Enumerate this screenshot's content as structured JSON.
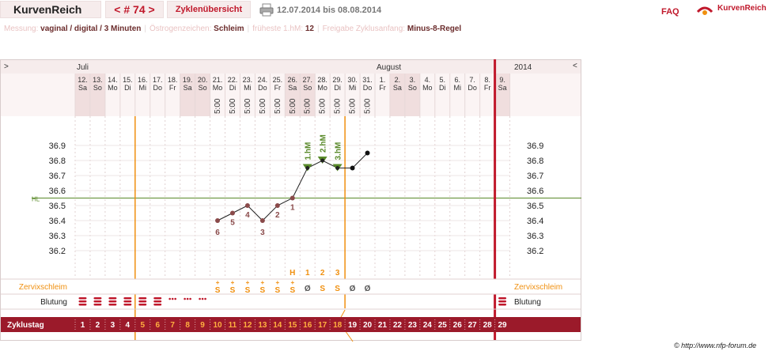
{
  "header": {
    "app_title": "KurvenReich",
    "cycle_nav": "< # 74 >",
    "cycle_overview": "Zyklenübersicht",
    "date_range": "12.07.2014 bis 08.08.2014",
    "faq": "FAQ",
    "brand": "KurvenReich"
  },
  "info": [
    {
      "label": "Messung:",
      "value": "vaginal / digital / 3 Minuten"
    },
    {
      "label": "Östrogenzeichen:",
      "value": "Schleim"
    },
    {
      "label": "früheste 1.hM:",
      "value": "12"
    },
    {
      "label": "Freigabe Zyklusanfang:",
      "value": "Minus-8-Regel"
    }
  ],
  "chart": {
    "left_arrow": ">",
    "right_arrow": "<",
    "year": "2014",
    "hl_label": "HL",
    "months": [
      {
        "label": "Juli",
        "col": 0
      },
      {
        "label": "August",
        "col": 20
      }
    ],
    "days": [
      {
        "d": "12.",
        "w": "Sa",
        "cd": "1",
        "t": null,
        "m": "",
        "b": "heavy",
        "we": true
      },
      {
        "d": "13.",
        "w": "So",
        "cd": "2",
        "t": null,
        "m": "",
        "b": "heavy",
        "we": true
      },
      {
        "d": "14.",
        "w": "Mo",
        "cd": "3",
        "t": null,
        "m": "",
        "b": "heavy",
        "we": false
      },
      {
        "d": "15.",
        "w": "Di",
        "cd": "4",
        "t": null,
        "m": "",
        "b": "heavy",
        "we": false
      },
      {
        "d": "16.",
        "w": "Mi",
        "cd": "5",
        "t": null,
        "m": "",
        "b": "heavy",
        "we": false
      },
      {
        "d": "17.",
        "w": "Do",
        "cd": "6",
        "t": null,
        "m": "",
        "b": "heavy",
        "we": false
      },
      {
        "d": "18.",
        "w": "Fr",
        "cd": "7",
        "t": null,
        "m": "",
        "b": "spot",
        "we": false
      },
      {
        "d": "19.",
        "w": "Sa",
        "cd": "8",
        "t": null,
        "m": "",
        "b": "spot",
        "we": true
      },
      {
        "d": "20.",
        "w": "So",
        "cd": "9",
        "t": null,
        "m": "",
        "b": "spot",
        "we": true
      },
      {
        "d": "21.",
        "w": "Mo",
        "cd": "10",
        "t": "5:00",
        "m": "S+",
        "b": "",
        "we": false
      },
      {
        "d": "22.",
        "w": "Di",
        "cd": "11",
        "t": "5:00",
        "m": "S+",
        "b": "",
        "we": false
      },
      {
        "d": "23.",
        "w": "Mi",
        "cd": "12",
        "t": "5:00",
        "m": "S+",
        "b": "",
        "we": false
      },
      {
        "d": "24.",
        "w": "Do",
        "cd": "13",
        "t": "5:00",
        "m": "S+",
        "b": "",
        "we": false
      },
      {
        "d": "25.",
        "w": "Fr",
        "cd": "14",
        "t": "5:00",
        "m": "S+",
        "b": "",
        "we": false
      },
      {
        "d": "26.",
        "w": "Sa",
        "cd": "15",
        "t": "5:00",
        "m": "S+",
        "b": "",
        "we": true
      },
      {
        "d": "27.",
        "w": "So",
        "cd": "16",
        "t": "5:00",
        "m": "Ø",
        "b": "",
        "we": true
      },
      {
        "d": "28.",
        "w": "Mo",
        "cd": "17",
        "t": "5:00",
        "m": "S",
        "b": "",
        "we": false
      },
      {
        "d": "29.",
        "w": "Di",
        "cd": "18",
        "t": "5:00",
        "m": "S",
        "b": "",
        "we": false
      },
      {
        "d": "30.",
        "w": "Mi",
        "cd": "19",
        "t": "5:00",
        "m": "Ø",
        "b": "",
        "we": false
      },
      {
        "d": "31.",
        "w": "Do",
        "cd": "20",
        "t": "5:00",
        "m": "Ø",
        "b": "",
        "we": false
      },
      {
        "d": "1.",
        "w": "Fr",
        "cd": "21",
        "t": null,
        "m": "",
        "b": "",
        "we": false
      },
      {
        "d": "2.",
        "w": "Sa",
        "cd": "22",
        "t": null,
        "m": "",
        "b": "",
        "we": true
      },
      {
        "d": "3.",
        "w": "So",
        "cd": "23",
        "t": null,
        "m": "",
        "b": "",
        "we": true
      },
      {
        "d": "4.",
        "w": "Mo",
        "cd": "24",
        "t": null,
        "m": "",
        "b": "",
        "we": false
      },
      {
        "d": "5.",
        "w": "Di",
        "cd": "25",
        "t": null,
        "m": "",
        "b": "",
        "we": false
      },
      {
        "d": "6.",
        "w": "Mi",
        "cd": "26",
        "t": null,
        "m": "",
        "b": "",
        "we": false
      },
      {
        "d": "7.",
        "w": "Do",
        "cd": "27",
        "t": null,
        "m": "",
        "b": "",
        "we": false
      },
      {
        "d": "8.",
        "w": "Fr",
        "cd": "28",
        "t": null,
        "m": "",
        "b": "",
        "we": false
      },
      {
        "d": "9.",
        "w": "Sa",
        "cd": "29",
        "t": null,
        "m": "",
        "b": "heavy",
        "we": true
      }
    ],
    "temps": [
      {
        "col": 9,
        "v": 36.4,
        "lbl": "6",
        "mk": "low"
      },
      {
        "col": 10,
        "v": 36.45,
        "lbl": "5",
        "mk": "low"
      },
      {
        "col": 11,
        "v": 36.5,
        "lbl": "4",
        "mk": "low"
      },
      {
        "col": 12,
        "v": 36.4,
        "lbl": "3",
        "mk": "low"
      },
      {
        "col": 13,
        "v": 36.5,
        "lbl": "2",
        "mk": "low"
      },
      {
        "col": 14,
        "v": 36.55,
        "lbl": "1",
        "mk": "low"
      },
      {
        "col": 15,
        "v": 36.75,
        "lbl": "1.hM",
        "mk": "high"
      },
      {
        "col": 16,
        "v": 36.8,
        "lbl": "2.hM",
        "mk": "high"
      },
      {
        "col": 17,
        "v": 36.75,
        "lbl": "3.hM",
        "mk": "high"
      },
      {
        "col": 18,
        "v": 36.75,
        "lbl": "",
        "mk": "normal"
      },
      {
        "col": 19,
        "v": 36.85,
        "lbl": "",
        "mk": "normal"
      }
    ],
    "y_ticks": [
      36.2,
      36.3,
      36.4,
      36.5,
      36.6,
      36.7,
      36.8,
      36.9
    ],
    "y_range": [
      36.05,
      37.0
    ],
    "hl_value": 36.55,
    "peak_markers": [
      {
        "col": 14,
        "t": "H"
      },
      {
        "col": 15,
        "t": "1"
      },
      {
        "col": 16,
        "t": "2"
      },
      {
        "col": 17,
        "t": "3"
      }
    ],
    "row_labels": {
      "cervix": "Zervixschleim",
      "blood": "Blutung",
      "cycle_day": "Zyklustag"
    },
    "colors": {
      "accent": "#c0182b",
      "orange": "#f09010",
      "green": "#5a8a2a",
      "band": "#9b1a2a"
    }
  },
  "copyright": "© http://www.nfp-forum.de"
}
